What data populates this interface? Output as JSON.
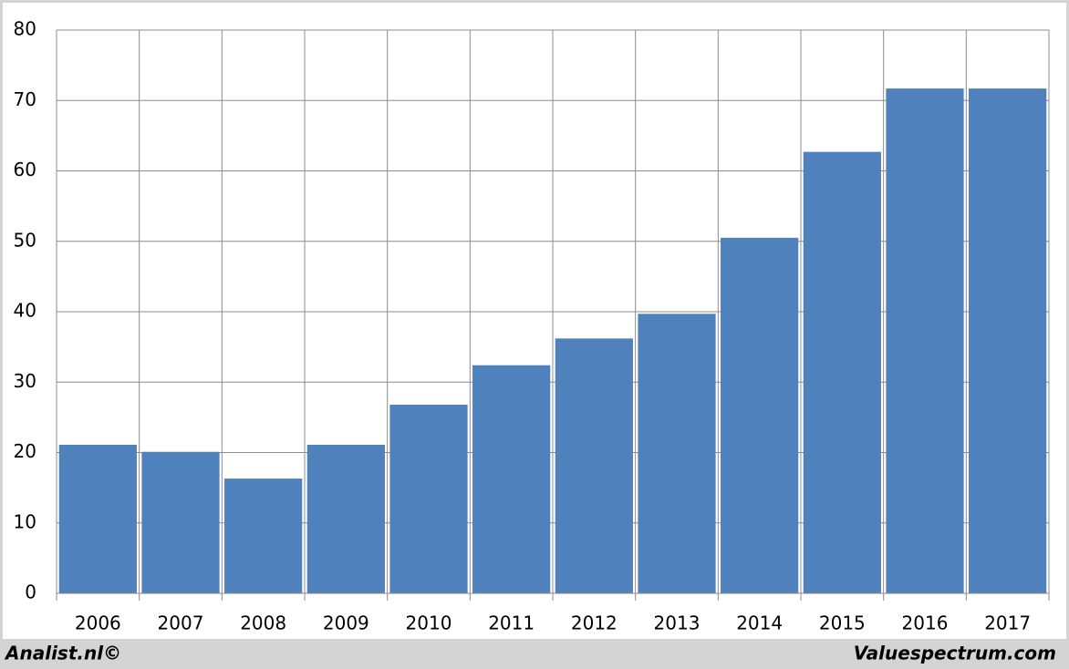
{
  "chart_data": {
    "type": "bar",
    "categories": [
      "2006",
      "2007",
      "2008",
      "2009",
      "2010",
      "2011",
      "2012",
      "2013",
      "2014",
      "2015",
      "2016",
      "2017"
    ],
    "values": [
      21.1,
      20.1,
      16.3,
      21.1,
      26.8,
      32.4,
      36.2,
      39.7,
      50.5,
      62.7,
      71.7,
      71.7
    ],
    "color": "#4f81bd",
    "ylim": [
      0,
      80
    ],
    "yticks": [
      0,
      10,
      20,
      30,
      40,
      50,
      60,
      70,
      80
    ],
    "grid": true
  },
  "footer": {
    "left": "Analist.nl©",
    "right": "Valuespectrum.com"
  }
}
